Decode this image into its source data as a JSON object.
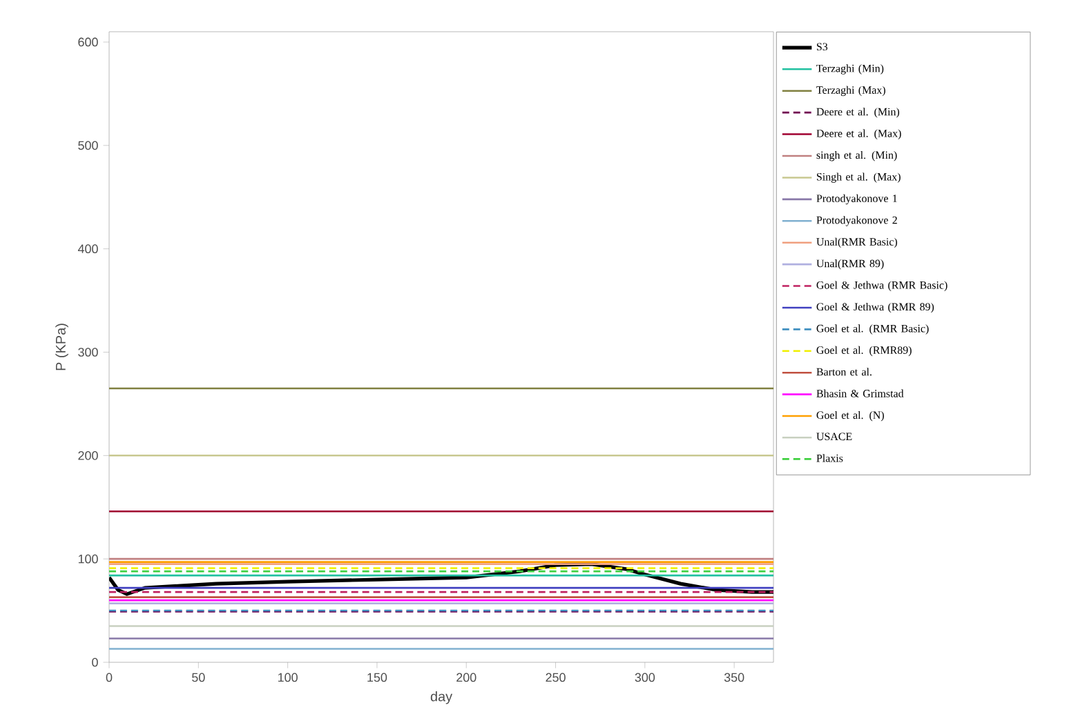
{
  "chart_data": {
    "type": "line",
    "xlabel": "day",
    "ylabel": "P (KPa)",
    "xlim": [
      0,
      372
    ],
    "ylim": [
      0,
      610
    ],
    "xticks": [
      0,
      50,
      100,
      150,
      200,
      250,
      300,
      350
    ],
    "yticks": [
      0,
      100,
      200,
      300,
      400,
      500,
      600
    ],
    "grid": false,
    "legend": "right",
    "marker": "none",
    "series": [
      {
        "name": "S3",
        "color": "#000000",
        "x": [
          0,
          5,
          10,
          20,
          40,
          60,
          80,
          100,
          150,
          200,
          230,
          250,
          270,
          290,
          300,
          320,
          340,
          360,
          372
        ],
        "values": [
          82,
          70,
          66,
          72,
          74,
          76,
          77,
          78,
          80,
          82,
          88,
          94,
          95,
          90,
          85,
          76,
          70,
          68,
          68
        ],
        "line_style": "solid"
      },
      {
        "name": "Terzaghi (Min)",
        "color": "#20c0a0",
        "x": [
          0,
          372
        ],
        "values": [
          84,
          84
        ],
        "line_style": "solid"
      },
      {
        "name": "Terzaghi (Max)",
        "color": "#808040",
        "x": [
          0,
          372
        ],
        "values": [
          265,
          265
        ],
        "line_style": "solid"
      },
      {
        "name": "Deere et al. (Min)",
        "color": "#700050",
        "x": [
          0,
          372
        ],
        "values": [
          49,
          49
        ],
        "line_style": "dashed"
      },
      {
        "name": "Deere et al. (Max)",
        "color": "#a00030",
        "x": [
          0,
          372
        ],
        "values": [
          146,
          146
        ],
        "line_style": "solid"
      },
      {
        "name": "singh et al. (Min)",
        "color": "#c08080",
        "x": [
          0,
          372
        ],
        "values": [
          100,
          100
        ],
        "line_style": "solid"
      },
      {
        "name": "Singh et al. (Max)",
        "color": "#c8c890",
        "x": [
          0,
          372
        ],
        "values": [
          200,
          200
        ],
        "line_style": "solid"
      },
      {
        "name": "Protodyakonove 1",
        "color": "#8878a8",
        "x": [
          0,
          372
        ],
        "values": [
          23,
          23
        ],
        "line_style": "solid"
      },
      {
        "name": "Protodyakonove 2",
        "color": "#80b0d0",
        "x": [
          0,
          372
        ],
        "values": [
          13,
          13
        ],
        "line_style": "solid"
      },
      {
        "name": "Unal(RMR Basic)",
        "color": "#f0a080",
        "x": [
          0,
          372
        ],
        "values": [
          95,
          95
        ],
        "line_style": "solid"
      },
      {
        "name": "Unal(RMR 89)",
        "color": "#b0b0e0",
        "x": [
          0,
          372
        ],
        "values": [
          57,
          57
        ],
        "line_style": "solid"
      },
      {
        "name": "Goel & Jethwa (RMR Basic)",
        "color": "#c02060",
        "x": [
          0,
          372
        ],
        "values": [
          68,
          68
        ],
        "line_style": "dashed"
      },
      {
        "name": "Goel & Jethwa (RMR 89)",
        "color": "#4040c0",
        "x": [
          0,
          372
        ],
        "values": [
          72,
          72
        ],
        "line_style": "solid"
      },
      {
        "name": "Goel et al. (RMR Basic)",
        "color": "#4090c0",
        "x": [
          0,
          372
        ],
        "values": [
          50,
          50
        ],
        "line_style": "dashed"
      },
      {
        "name": "Goel et al. (RMR89)",
        "color": "#f0f000",
        "x": [
          0,
          372
        ],
        "values": [
          91,
          91
        ],
        "line_style": "dashed"
      },
      {
        "name": "Barton et al.",
        "color": "#c05040",
        "x": [
          0,
          372
        ],
        "values": [
          63,
          63
        ],
        "line_style": "solid"
      },
      {
        "name": "Bhasin & Grimstad",
        "color": "#ff00ff",
        "x": [
          0,
          372
        ],
        "values": [
          60,
          60
        ],
        "line_style": "solid"
      },
      {
        "name": "Goel et al. (N)",
        "color": "#ffa000",
        "x": [
          0,
          372
        ],
        "values": [
          97,
          97
        ],
        "line_style": "solid"
      },
      {
        "name": "USACE",
        "color": "#c8d0c0",
        "x": [
          0,
          372
        ],
        "values": [
          35,
          35
        ],
        "line_style": "solid"
      },
      {
        "name": "Plaxis",
        "color": "#40d040",
        "x": [
          0,
          372
        ],
        "values": [
          88,
          88
        ],
        "line_style": "dashed"
      }
    ]
  }
}
